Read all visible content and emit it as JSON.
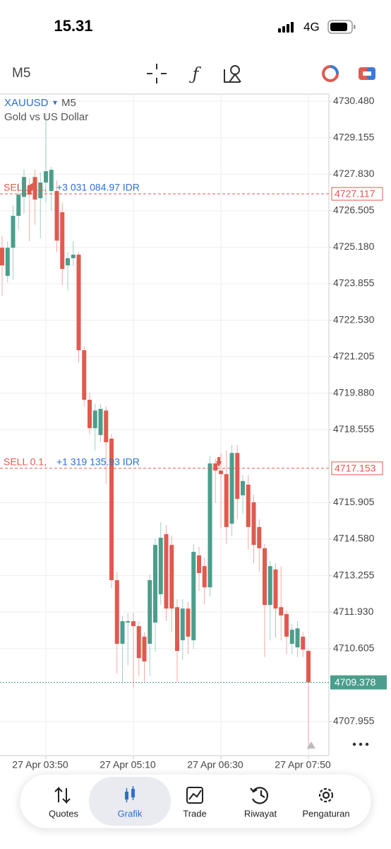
{
  "status_bar": {
    "time": "15.31",
    "network": "4G"
  },
  "toolbar": {
    "timeframe": "M5"
  },
  "chart_data": {
    "type": "candlestick",
    "symbol": "XAUUSD",
    "timeframe": "M5",
    "description": "Gold vs US Dollar",
    "categories": [
      null,
      null,
      null,
      null,
      null,
      null,
      null,
      null,
      "27 Apr 03:50",
      null,
      null,
      null,
      null,
      null,
      null,
      null,
      null,
      null,
      null,
      null,
      null,
      null,
      null,
      null,
      "27 Apr 05:10",
      null,
      null,
      null,
      null,
      null,
      null,
      null,
      null,
      null,
      null,
      null,
      null,
      null,
      null,
      null,
      "27 Apr 06:30",
      null,
      null,
      null,
      null,
      null,
      null,
      null,
      null,
      null,
      null,
      null,
      null,
      null,
      null,
      null,
      "27 Apr 07:50"
    ],
    "open": [
      4725.16,
      4724.14,
      4725.16,
      4726.32,
      4727.01,
      4727.42,
      4727.73,
      4726.96,
      4727.53,
      4727.22,
      4727.22,
      4726.45,
      4724.52,
      4724.78,
      4724.91,
      4721.44,
      4719.64,
      4718.61,
      4718.36,
      4719.25,
      4718.23,
      4713.09,
      4710.78,
      4711.55,
      4711.6,
      4711.42,
      4711.04,
      4710.78,
      4711.55,
      4712.58,
      4714.76,
      4714.37,
      4712.11,
      4710.91,
      4712.06,
      4710.91,
      4713.99,
      4713.6,
      4712.83,
      4717.33,
      4717.07,
      4716.94,
      4715.14,
      4717.71,
      4716.17,
      4716.56,
      4715.92,
      4715.02,
      4714.25,
      4712.19,
      4713.48,
      4712.11,
      4711.86,
      4710.78,
      4710.65,
      4711.04,
      4710.52
    ],
    "high": [
      4725.6,
      4725.4,
      4726.7,
      4727.5,
      4728.0,
      4727.7,
      4728.0,
      4727.9,
      4730.04,
      4728.1,
      4727.6,
      4726.8,
      4725.0,
      4725.4,
      4725.0,
      4721.6,
      4719.9,
      4719.5,
      4719.5,
      4719.4,
      4718.4,
      4713.4,
      4711.8,
      4711.9,
      4711.9,
      4711.6,
      4711.2,
      4713.3,
      4714.6,
      4715.2,
      4715.1,
      4714.7,
      4712.4,
      4712.4,
      4712.3,
      4714.4,
      4714.3,
      4713.9,
      4717.6,
      4717.5,
      4717.7,
      4717.8,
      4718.0,
      4718.0,
      4716.9,
      4716.9,
      4716.2,
      4715.3,
      4714.4,
      4713.8,
      4713.7,
      4713.6,
      4712.0,
      4711.5,
      4711.6,
      4711.2,
      4710.6
    ],
    "low": [
      4723.4,
      4723.9,
      4724.0,
      4725.8,
      4726.4,
      4725.4,
      4726.0,
      4725.5,
      4726.8,
      4726.5,
      4725.0,
      4723.8,
      4723.6,
      4724.5,
      4721.0,
      4719.4,
      4718.4,
      4717.8,
      4718.1,
      4716.6,
      4712.8,
      4709.7,
      4709.4,
      4710.0,
      4709.2,
      4709.6,
      4709.4,
      4709.6,
      4710.5,
      4712.2,
      4711.6,
      4711.2,
      4709.4,
      4710.2,
      4710.4,
      4710.6,
      4712.7,
      4712.2,
      4712.5,
      4715.9,
      4715.0,
      4714.4,
      4714.7,
      4715.3,
      4715.5,
      4714.2,
      4713.7,
      4713.4,
      4710.3,
      4710.9,
      4711.0,
      4710.9,
      4710.4,
      4710.4,
      4710.3,
      4710.3,
      4706.93
    ],
    "close": [
      4724.52,
      4725.16,
      4726.32,
      4727.09,
      4727.73,
      4727.09,
      4726.91,
      4727.53,
      4727.94,
      4727.99,
      4725.42,
      4724.39,
      4724.78,
      4724.91,
      4721.44,
      4719.64,
      4718.61,
      4719.25,
      4719.31,
      4718.1,
      4713.09,
      4710.78,
      4711.6,
      4711.6,
      4711.42,
      4710.26,
      4710.14,
      4713.09,
      4714.37,
      4714.63,
      4712.06,
      4712.06,
      4710.52,
      4712.06,
      4711.04,
      4714.12,
      4713.35,
      4712.83,
      4717.33,
      4717.07,
      4716.94,
      4715.02,
      4717.71,
      4716.04,
      4716.69,
      4715.02,
      4714.37,
      4714.25,
      4712.19,
      4713.6,
      4712.06,
      4711.81,
      4711.04,
      4711.29,
      4711.34,
      4710.57,
      4709.38
    ],
    "up_color": "#4b9e8c",
    "down_color": "#e05a4f",
    "ylim": [
      4706.72,
      4730.74
    ],
    "yticks": [
      {
        "value": 4730.48,
        "label": "4730.480"
      },
      4729.155,
      {
        "value": 4727.83,
        "label": "4727.830"
      },
      4726.505,
      {
        "value": 4725.18,
        "label": "4725.180"
      },
      4723.855,
      {
        "value": 4722.53,
        "label": "4722.530"
      },
      4721.205,
      {
        "value": 4719.88,
        "label": "4719.880"
      },
      4718.555,
      4715.905,
      {
        "value": 4714.58,
        "label": "4714.580"
      },
      4713.255,
      {
        "value": 4711.93,
        "label": "4711.930"
      },
      4710.605,
      4707.955
    ],
    "grid": true,
    "price_lines": [
      {
        "side": "SELL 0.1,",
        "profit": "+3 031 084.97 IDR",
        "value": 4727.117
      },
      {
        "side": "SELL 0.1,",
        "profit": "+1 319 135.93 IDR",
        "value": 4717.153
      }
    ],
    "last_price": 4709.378
  },
  "tab_bar": {
    "tabs": [
      "Quotes",
      "Grafik",
      "Trade",
      "Riwayat",
      "Pengaturan"
    ]
  }
}
